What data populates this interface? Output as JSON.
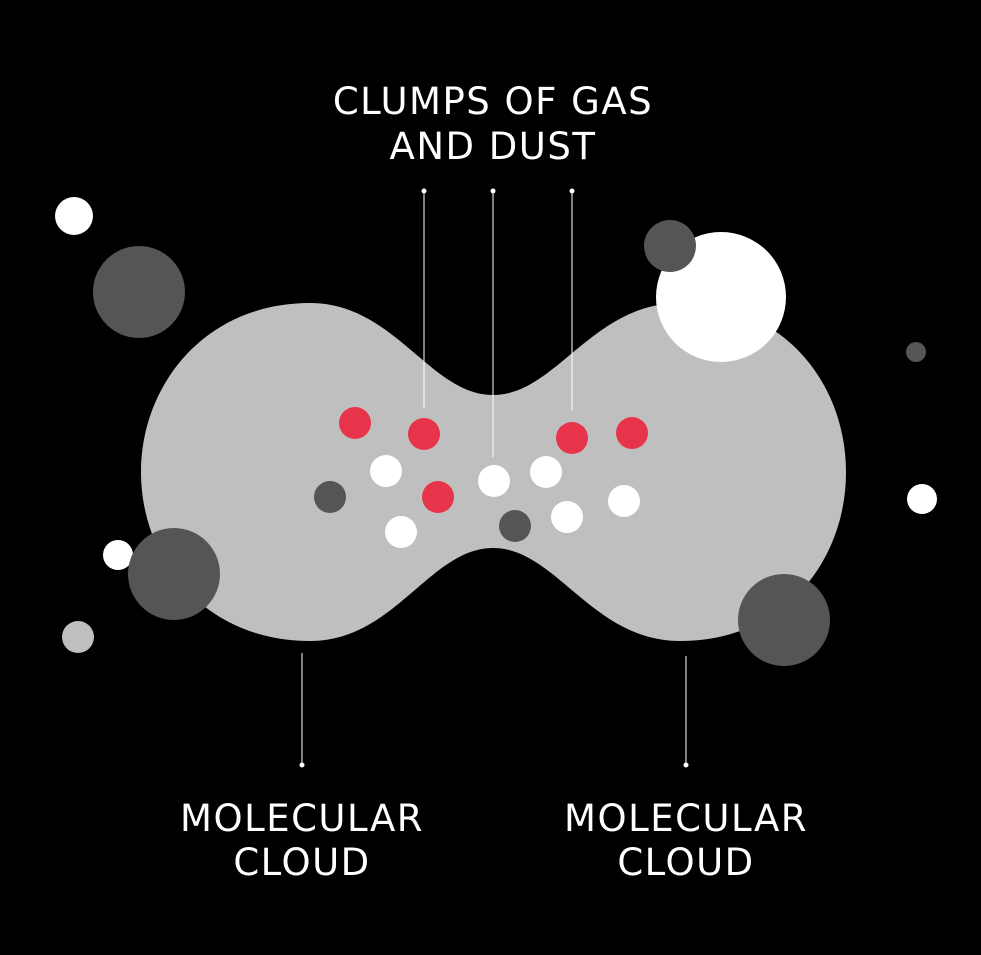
{
  "colors": {
    "background": "#000000",
    "cloud": "#bfbfbf",
    "dark_sphere": "#555555",
    "light_sphere": "#ffffff",
    "grey_sphere": "#bfbfbf",
    "red_clump": "#e8344a",
    "leader_line": "#ffffff",
    "text": "#ffffff"
  },
  "labels": {
    "clumps": {
      "line1": "CLUMPS OF GAS",
      "line2": "AND DUST"
    },
    "left_cloud": {
      "line1": "MOLECULAR",
      "line2": "CLOUD"
    },
    "right_cloud": {
      "line1": "MOLECULAR",
      "line2": "CLOUD"
    }
  }
}
